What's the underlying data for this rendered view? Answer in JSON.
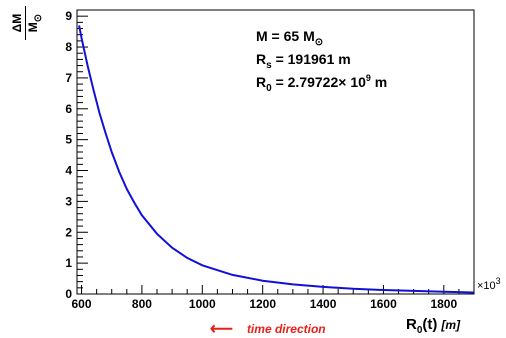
{
  "chart_data": {
    "type": "line",
    "x_multiplier_label": "×10",
    "x_multiplier_exponent": "3",
    "xlim": [
      585,
      1900
    ],
    "ylim": [
      0,
      9.2
    ],
    "x_ticks": [
      600,
      800,
      1000,
      1200,
      1400,
      1600,
      1800
    ],
    "x_tick_labels": [
      "600",
      "800",
      "1000",
      "1200",
      "1400",
      "1600",
      "1800"
    ],
    "y_ticks": [
      0,
      1,
      2,
      3,
      4,
      5,
      6,
      7,
      8,
      9
    ],
    "y_tick_labels": [
      "0",
      "1",
      "2",
      "3",
      "4",
      "5",
      "6",
      "7",
      "8",
      "9"
    ],
    "grid": false,
    "series": [
      {
        "color": "#1010d8",
        "x": [
          592,
          600,
          620,
          640,
          660,
          680,
          700,
          725,
          750,
          775,
          800,
          850,
          900,
          950,
          1000,
          1100,
          1200,
          1300,
          1400,
          1500,
          1600,
          1700,
          1800,
          1900
        ],
        "values": [
          8.7,
          8.3,
          7.4,
          6.6,
          5.85,
          5.2,
          4.6,
          3.95,
          3.4,
          2.95,
          2.55,
          1.95,
          1.5,
          1.17,
          0.93,
          0.62,
          0.43,
          0.31,
          0.23,
          0.17,
          0.13,
          0.1,
          0.07,
          0.05
        ]
      }
    ],
    "ylabel": {
      "numerator": "ΔM",
      "denominator": "M",
      "denominator_sub": "⊙"
    },
    "xlabel": {
      "main": "R",
      "sub": "0",
      "rest": "(t)",
      "unit": "[m]"
    },
    "annotation": {
      "mass_prefix": "M = 65 M",
      "mass_sub": "⊙",
      "rs_main": "R",
      "rs_sub": "s",
      "rs_value": " = 191961 m",
      "r0_main": "R",
      "r0_sub": "0",
      "r0_value": " = 2.79722× 10",
      "r0_exp": "9",
      "r0_unit": " m"
    },
    "time_direction": {
      "arrow": "⟵",
      "label": "time direction",
      "color": "#e8201a"
    }
  }
}
